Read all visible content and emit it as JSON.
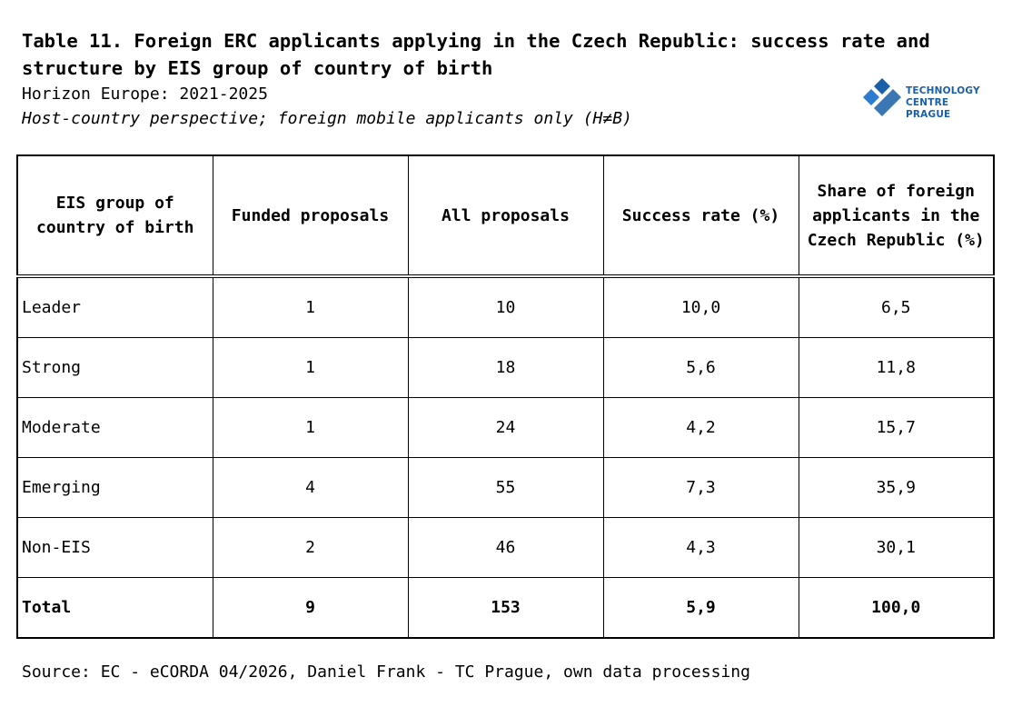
{
  "header": {
    "title": "Table 11. Foreign ERC applicants applying in the Czech Republic: success rate and structure by EIS group of country of birth",
    "subtitle": "Horizon Europe: 2021-2025",
    "perspective": "Host-country perspective; foreign mobile applicants only (H≠B)"
  },
  "logo": {
    "line1": "TECHNOLOGY",
    "line2": "CENTRE PRAGUE",
    "color": "#1a5fa8"
  },
  "table": {
    "columns": [
      "EIS group of country of birth",
      "Funded proposals",
      "All proposals",
      "Success rate (%)",
      "Share of foreign applicants in the Czech Republic (%)"
    ],
    "rows": [
      {
        "group": "Leader",
        "funded": "1",
        "all": "10",
        "success": "10,0",
        "share": "6,5"
      },
      {
        "group": "Strong",
        "funded": "1",
        "all": "18",
        "success": "5,6",
        "share": "11,8"
      },
      {
        "group": "Moderate",
        "funded": "1",
        "all": "24",
        "success": "4,2",
        "share": "15,7"
      },
      {
        "group": "Emerging",
        "funded": "4",
        "all": "55",
        "success": "7,3",
        "share": "35,9"
      },
      {
        "group": "Non-EIS",
        "funded": "2",
        "all": "46",
        "success": "4,3",
        "share": "30,1"
      }
    ],
    "total": {
      "group": "Total",
      "funded": "9",
      "all": "153",
      "success": "5,9",
      "share": "100,0"
    }
  },
  "footer": {
    "source": "Source: EC - eCORDA 04/2026, Daniel Frank - TC Prague, own data processing"
  }
}
